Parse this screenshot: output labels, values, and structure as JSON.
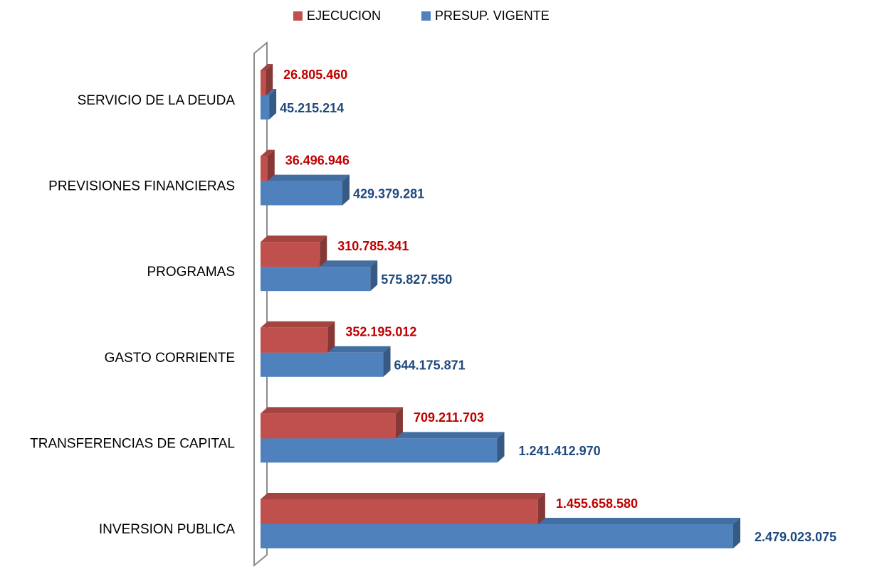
{
  "chart_data": {
    "type": "bar3d_horizontal",
    "categories": [
      "SERVICIO DE LA DEUDA",
      "PREVISIONES FINANCIERAS",
      "PROGRAMAS",
      "GASTO CORRIENTE",
      "TRANSFERENCIAS DE CAPITAL",
      "INVERSION PUBLICA"
    ],
    "series": [
      {
        "name": "EJECUCION",
        "color": "#c0504d",
        "label_color": "#c00000",
        "values": [
          26805460,
          36496946,
          310785341,
          352195012,
          709211703,
          1455658580
        ],
        "value_labels": [
          "26.805.460",
          "36.496.946",
          "310.785.341",
          "352.195.012",
          "709.211.703",
          "1.455.658.580"
        ]
      },
      {
        "name": "PRESUP. VIGENTE",
        "color": "#4f81bd",
        "label_color": "#1f497d",
        "values": [
          45215214,
          429379281,
          575827550,
          644175871,
          1241412970,
          2479023075
        ],
        "value_labels": [
          "45.215.214",
          "429.379.281",
          "575.827.550",
          "644.175.871",
          "1.241.412.970",
          "2.479.023.075"
        ]
      }
    ],
    "legend": "top"
  }
}
